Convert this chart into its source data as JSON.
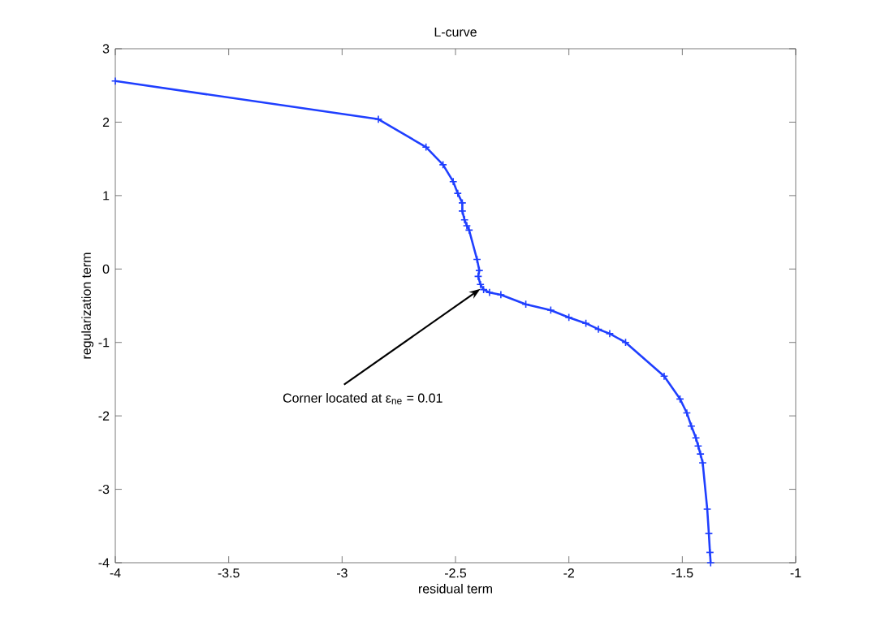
{
  "chart_data": {
    "type": "line",
    "title": "L-curve",
    "xlabel": "residual term",
    "ylabel": "regularization term",
    "xlim": [
      -4,
      -1
    ],
    "ylim": [
      -4,
      3
    ],
    "xticks": [
      -4,
      -3.5,
      -3,
      -2.5,
      -2,
      -1.5,
      -1
    ],
    "yticks": [
      -4,
      -3,
      -2,
      -1,
      0,
      1,
      2,
      3
    ],
    "grid": false,
    "marker": "cross",
    "line_style": "solid",
    "annotations": [
      {
        "text": "Corner located at ε$_{ne}$ = 0.01",
        "x": -2.39,
        "y": -0.27
      }
    ],
    "series": [
      {
        "color": "#1f3fff",
        "x": [
          -4,
          -2.84,
          -2.63,
          -2.555,
          -2.51,
          -2.49,
          -2.47,
          -2.47,
          -2.46,
          -2.45,
          -2.44,
          -2.405,
          -2.395,
          -2.4,
          -2.39,
          -2.376,
          -2.35,
          -2.3,
          -2.19,
          -2.08,
          -2.0,
          -1.925,
          -1.87,
          -1.82,
          -1.75,
          -1.58,
          -1.51,
          -1.48,
          -1.46,
          -1.44,
          -1.43,
          -1.42,
          -1.41,
          -1.39,
          -1.383,
          -1.378,
          -1.375
        ],
        "values": [
          2.56,
          2.04,
          1.66,
          1.42,
          1.19,
          1.03,
          0.9,
          0.79,
          0.67,
          0.59,
          0.53,
          0.13,
          -0.02,
          -0.1,
          -0.21,
          -0.28,
          -0.32,
          -0.35,
          -0.48,
          -0.56,
          -0.66,
          -0.74,
          -0.82,
          -0.88,
          -1.0,
          -1.46,
          -1.77,
          -1.96,
          -2.14,
          -2.3,
          -2.41,
          -2.52,
          -2.64,
          -3.27,
          -3.6,
          -3.86,
          -4.0
        ]
      }
    ]
  }
}
